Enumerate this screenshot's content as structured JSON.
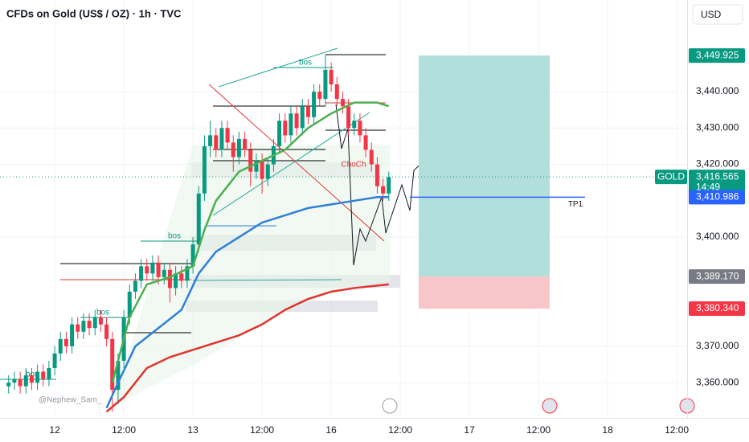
{
  "chart_data": {
    "type": "candlestick",
    "title": "CFDs on Gold (US$ / OZ) · 1h · TVC",
    "currency": "USD",
    "symbol": "GOLD",
    "countdown": "14:49",
    "up_color": "#089981",
    "down_color": "#f23645",
    "xlim": [
      -9.5,
      109.8
    ],
    "ylim": [
      3350.3,
      3465.2
    ],
    "grid": true,
    "xticks": [
      {
        "value": 0,
        "label": "12"
      },
      {
        "value": 12,
        "label": "12:00"
      },
      {
        "value": 24,
        "label": "13"
      },
      {
        "value": 36,
        "label": "12:00"
      },
      {
        "value": 48,
        "label": "16"
      },
      {
        "value": 60,
        "label": "12:00"
      },
      {
        "value": 72,
        "label": "17"
      },
      {
        "value": 84,
        "label": "12:00"
      },
      {
        "value": 96,
        "label": "18"
      },
      {
        "value": 108,
        "label": "12:00"
      }
    ],
    "yticks": [
      {
        "value": 3360,
        "label": "3,360.000"
      },
      {
        "value": 3370,
        "label": "3,370.000"
      },
      {
        "value": 3400,
        "label": "3,400.000"
      },
      {
        "value": 3420,
        "label": "3,420.000"
      },
      {
        "value": 3430,
        "label": "3,430.000"
      },
      {
        "value": 3440,
        "label": "3,440.000"
      }
    ],
    "x": [
      -8,
      -7,
      -6,
      -5,
      -4,
      -3,
      -2,
      -1,
      0,
      1,
      2,
      3,
      4,
      5,
      6,
      7,
      8,
      9,
      10,
      11,
      12,
      13,
      14,
      15,
      16,
      17,
      18,
      19,
      20,
      21,
      22,
      23,
      24,
      25,
      26,
      27,
      28,
      29,
      30,
      31,
      32,
      33,
      34,
      35,
      36,
      37,
      38,
      39,
      40,
      41,
      42,
      43,
      44,
      45,
      46,
      47,
      48,
      49,
      50,
      51,
      52,
      53,
      54,
      55,
      56,
      57,
      58
    ],
    "open": [
      3359,
      3360,
      3361,
      3359,
      3362,
      3360,
      3363,
      3361,
      3364,
      3368,
      3372,
      3370,
      3376,
      3374,
      3377,
      3375,
      3378,
      3376,
      3372,
      3358,
      3366,
      3378,
      3385,
      3388,
      3392,
      3390,
      3393,
      3389,
      3391,
      3386,
      3390,
      3388,
      3392,
      3398,
      3412,
      3425,
      3428,
      3424,
      3430,
      3426,
      3422,
      3427,
      3424,
      3418,
      3421,
      3416,
      3420,
      3425,
      3432,
      3428,
      3434,
      3430,
      3436,
      3433,
      3440,
      3438,
      3446,
      3442,
      3438,
      3436,
      3430,
      3432,
      3428,
      3424,
      3420,
      3414,
      3412
    ],
    "high": [
      3362,
      3363,
      3363,
      3364,
      3364,
      3365,
      3365,
      3366,
      3370,
      3374,
      3374,
      3378,
      3378,
      3379,
      3379,
      3380,
      3380,
      3378,
      3374,
      3368,
      3380,
      3387,
      3390,
      3394,
      3394,
      3395,
      3395,
      3393,
      3393,
      3392,
      3392,
      3394,
      3400,
      3414,
      3428,
      3432,
      3430,
      3432,
      3432,
      3428,
      3429,
      3429,
      3426,
      3423,
      3423,
      3422,
      3427,
      3434,
      3434,
      3436,
      3436,
      3438,
      3438,
      3442,
      3442,
      3450,
      3448,
      3444,
      3440,
      3438,
      3434,
      3434,
      3430,
      3426,
      3422,
      3416,
      3418
    ],
    "low": [
      3357,
      3358,
      3357,
      3357,
      3358,
      3358,
      3359,
      3359,
      3362,
      3366,
      3368,
      3368,
      3372,
      3372,
      3373,
      3373,
      3374,
      3370,
      3352,
      3354,
      3364,
      3376,
      3383,
      3386,
      3388,
      3388,
      3387,
      3387,
      3382,
      3384,
      3386,
      3386,
      3390,
      3396,
      3410,
      3422,
      3422,
      3422,
      3424,
      3418,
      3420,
      3422,
      3414,
      3416,
      3412,
      3414,
      3418,
      3423,
      3426,
      3426,
      3428,
      3428,
      3431,
      3431,
      3436,
      3436,
      3440,
      3436,
      3434,
      3428,
      3428,
      3426,
      3422,
      3418,
      3412,
      3410,
      3410
    ],
    "close": [
      3360,
      3361,
      3359,
      3362,
      3360,
      3363,
      3361,
      3364,
      3368,
      3372,
      3370,
      3376,
      3374,
      3377,
      3375,
      3378,
      3376,
      3372,
      3358,
      3366,
      3378,
      3385,
      3388,
      3392,
      3390,
      3393,
      3389,
      3391,
      3386,
      3390,
      3388,
      3392,
      3398,
      3412,
      3425,
      3428,
      3424,
      3430,
      3426,
      3422,
      3427,
      3424,
      3418,
      3421,
      3416,
      3420,
      3425,
      3432,
      3428,
      3434,
      3430,
      3436,
      3433,
      3440,
      3438,
      3446,
      3442,
      3438,
      3436,
      3430,
      3432,
      3428,
      3424,
      3420,
      3414,
      3412,
      3416.5
    ],
    "series": [
      {
        "color": "#2f80d8",
        "x": [
          9,
          11,
          14,
          18,
          22,
          25,
          28,
          32,
          36,
          40,
          44,
          48,
          52,
          56,
          58
        ],
        "values": [
          3353,
          3360,
          3370,
          3375,
          3380,
          3390,
          3396,
          3400,
          3404,
          3406,
          3408,
          3409,
          3410,
          3411,
          3411
        ]
      },
      {
        "color": "#e0342f",
        "x": [
          9,
          12,
          16,
          20,
          24,
          28,
          32,
          36,
          40,
          44,
          48,
          52,
          58
        ],
        "values": [
          3352,
          3356,
          3364,
          3367,
          3369,
          3371,
          3373,
          3376,
          3380,
          3383,
          3385,
          3386,
          3387
        ]
      },
      {
        "color": "#4caf50",
        "x": [
          10,
          13,
          16,
          20,
          24,
          26,
          28,
          32,
          36,
          40,
          44,
          48,
          52,
          56,
          58
        ],
        "values": [
          3360,
          3378,
          3387,
          3389,
          3392,
          3402,
          3410,
          3418,
          3421,
          3424,
          3430,
          3434,
          3437,
          3437,
          3436
        ]
      }
    ],
    "price_labels": [
      {
        "value": 3449.925,
        "label": "3,449.925",
        "color": "#089981"
      },
      {
        "value": 3416.565,
        "label": "3,416.565",
        "color": "#089981"
      },
      {
        "value": 3410.986,
        "label": "3,410.986",
        "color": "#2962ff"
      },
      {
        "value": 3389.17,
        "label": "3,389.170",
        "color": "#787b86"
      },
      {
        "value": 3380.34,
        "label": "3,380.340",
        "color": "#f23645"
      }
    ],
    "annotations": [
      "bos",
      "bos",
      "bos",
      "bos",
      "ChoCh",
      "TP1",
      "@Nephew_Sam_"
    ]
  }
}
